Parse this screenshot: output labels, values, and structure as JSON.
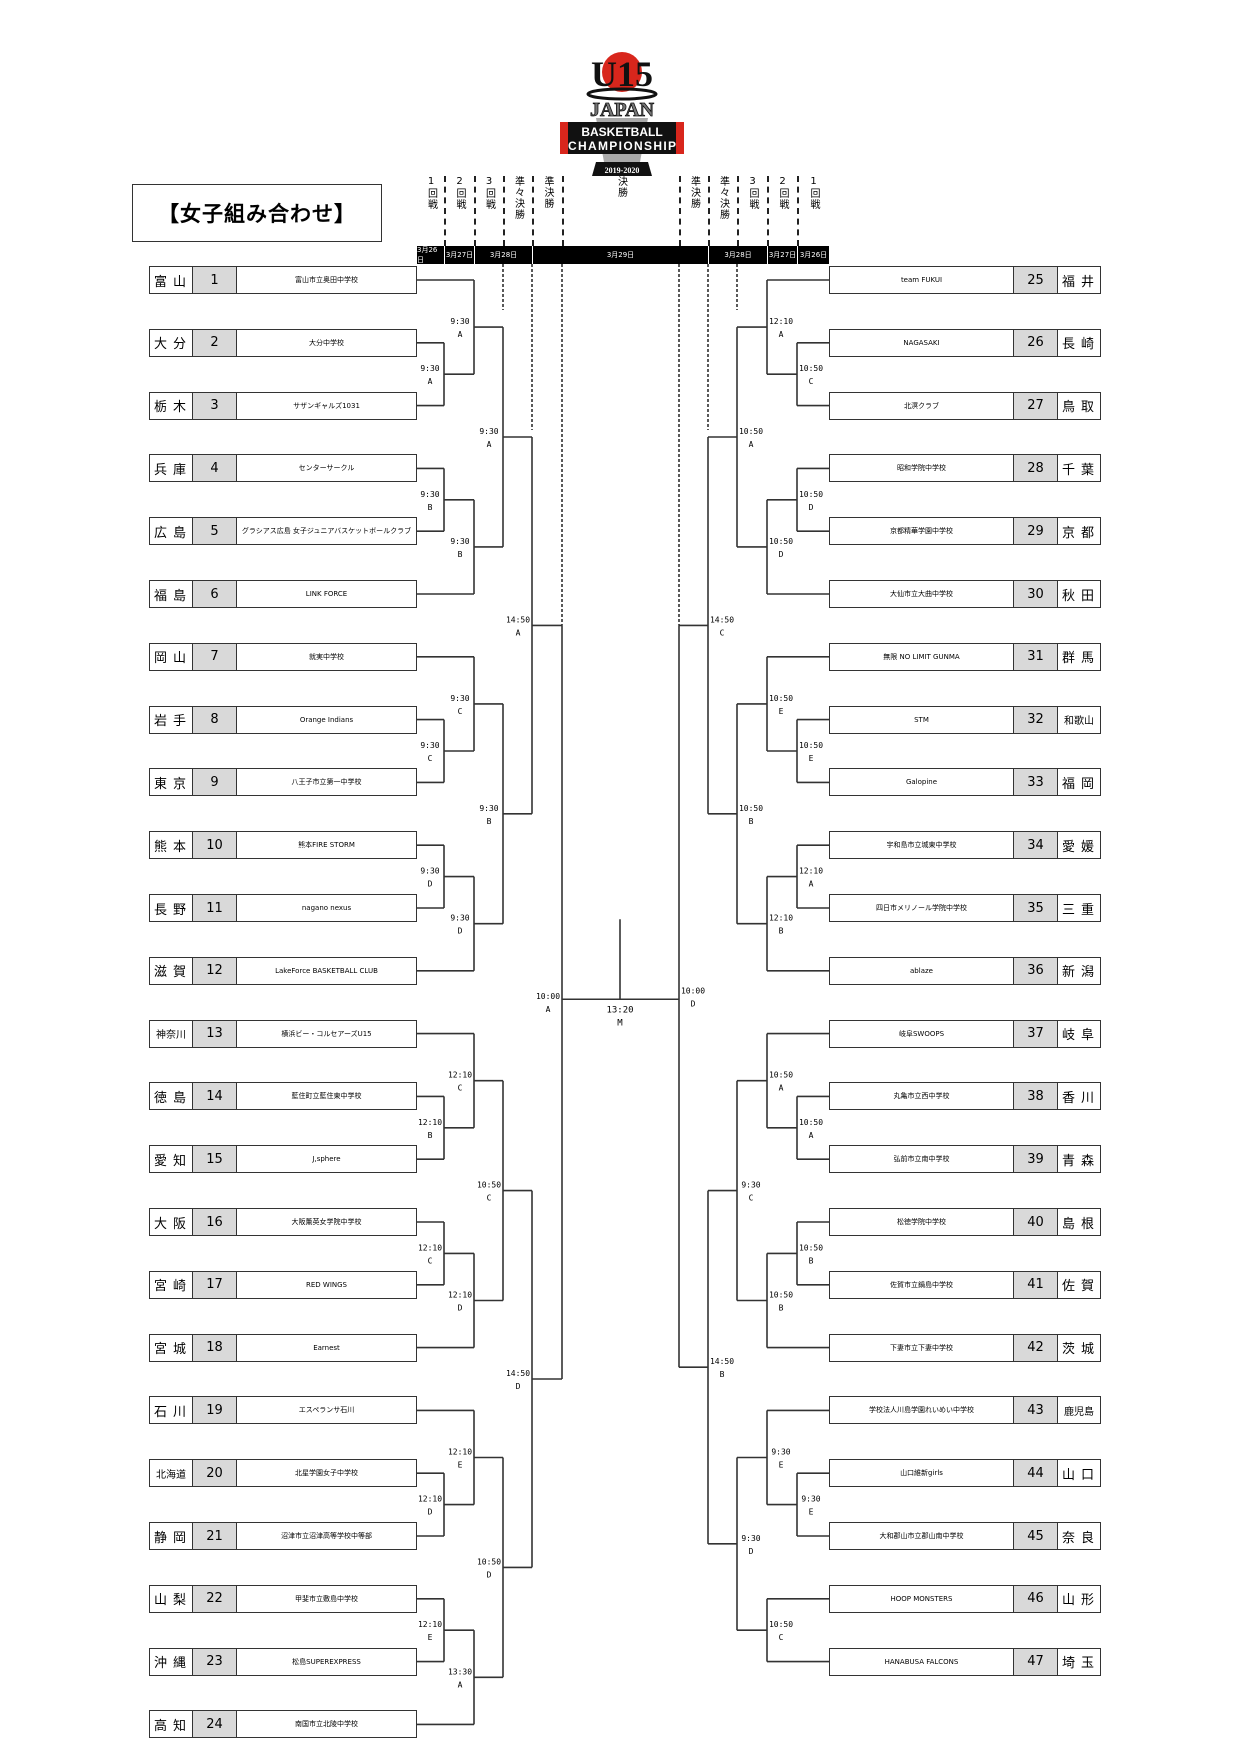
{
  "logo": {
    "line1": "U15",
    "line2": "JAPAN",
    "line3": "BASKETBALL",
    "line4": "CHAMPIONSHIP",
    "years": "2019-2020"
  },
  "title": "【女子組み合わせ】",
  "header": {
    "rounds": [
      "1回戦",
      "2回戦",
      "3回戦",
      "準々決勝",
      "準決勝",
      "決勝",
      "準決勝",
      "準々決勝",
      "3回戦",
      "2回戦",
      "1回戦"
    ],
    "dates": [
      "3月26日",
      "3月27日",
      "3月28日",
      "3月29日",
      "3月28日",
      "3月27日",
      "3月26日"
    ]
  },
  "left": {
    "teams": [
      {
        "pref": "富山",
        "no": "1",
        "name": "富山市立奥田中学校"
      },
      {
        "pref": "大分",
        "no": "2",
        "name": "大分中学校"
      },
      {
        "pref": "栃木",
        "no": "3",
        "name": "サザンギャルズ1031"
      },
      {
        "pref": "兵庫",
        "no": "4",
        "name": "センターサークル"
      },
      {
        "pref": "広島",
        "no": "5",
        "name": "グラシアス広島 女子ジュニアバスケットボールクラブ"
      },
      {
        "pref": "福島",
        "no": "6",
        "name": "LINK FORCE"
      },
      {
        "pref": "岡山",
        "no": "7",
        "name": "就実中学校"
      },
      {
        "pref": "岩手",
        "no": "8",
        "name": "Orange Indians"
      },
      {
        "pref": "東京",
        "no": "9",
        "name": "八王子市立第一中学校"
      },
      {
        "pref": "熊本",
        "no": "10",
        "name": "熊本FIRE STORM"
      },
      {
        "pref": "長野",
        "no": "11",
        "name": "nagano nexus"
      },
      {
        "pref": "滋賀",
        "no": "12",
        "name": "LakeForce BASKETBALL CLUB"
      },
      {
        "pref": "神奈川",
        "no": "13",
        "name": "横浜ビー・コルセアーズU15"
      },
      {
        "pref": "徳島",
        "no": "14",
        "name": "藍住町立藍住東中学校"
      },
      {
        "pref": "愛知",
        "no": "15",
        "name": "J,sphere"
      },
      {
        "pref": "大阪",
        "no": "16",
        "name": "大阪薫英女学院中学校"
      },
      {
        "pref": "宮崎",
        "no": "17",
        "name": "RED WINGS"
      },
      {
        "pref": "宮城",
        "no": "18",
        "name": "Earnest"
      },
      {
        "pref": "石川",
        "no": "19",
        "name": "エスペランサ石川"
      },
      {
        "pref": "北海道",
        "no": "20",
        "name": "北星学園女子中学校"
      },
      {
        "pref": "静岡",
        "no": "21",
        "name": "沼津市立沼津高等学校中等部"
      },
      {
        "pref": "山梨",
        "no": "22",
        "name": "甲斐市立敷島中学校"
      },
      {
        "pref": "沖縄",
        "no": "23",
        "name": "松島SUPEREXPRESS"
      },
      {
        "pref": "高知",
        "no": "24",
        "name": "南国市立北陵中学校"
      }
    ],
    "group_matches": [
      {
        "first": {
          "time": "9:30",
          "court": "A"
        },
        "second": {
          "time": "9:30",
          "court": "A"
        }
      },
      {
        "first": {
          "time": "9:30",
          "court": "B"
        },
        "second": {
          "time": "9:30",
          "court": "B"
        }
      },
      {
        "first": {
          "time": "9:30",
          "court": "C"
        },
        "second": {
          "time": "9:30",
          "court": "C"
        }
      },
      {
        "first": {
          "time": "9:30",
          "court": "D"
        },
        "second": {
          "time": "9:30",
          "court": "D"
        }
      },
      {
        "first": {
          "time": "12:10",
          "court": "B"
        },
        "second": {
          "time": "12:10",
          "court": "C"
        }
      },
      {
        "first": {
          "time": "12:10",
          "court": "C"
        },
        "second": {
          "time": "12:10",
          "court": "D"
        }
      },
      {
        "first": {
          "time": "12:10",
          "court": "D"
        },
        "second": {
          "time": "12:10",
          "court": "E"
        }
      },
      {
        "first": {
          "time": "12:10",
          "court": "E"
        },
        "second": {
          "time": "13:30",
          "court": "A"
        }
      }
    ],
    "round3": [
      {
        "time": "9:30",
        "court": "A"
      },
      {
        "time": "9:30",
        "court": "B"
      },
      {
        "time": "10:50",
        "court": "C"
      },
      {
        "time": "10:50",
        "court": "D"
      }
    ],
    "quarterfinals": [
      {
        "time": "14:50",
        "court": "A"
      },
      {
        "time": "14:50",
        "court": "D"
      }
    ],
    "semifinal": {
      "time": "10:00",
      "court": "A"
    }
  },
  "right": {
    "teams": [
      {
        "pref": "福井",
        "no": "25",
        "name": "team FUKUI"
      },
      {
        "pref": "長崎",
        "no": "26",
        "name": "NAGASAKI"
      },
      {
        "pref": "鳥取",
        "no": "27",
        "name": "北溟クラブ"
      },
      {
        "pref": "千葉",
        "no": "28",
        "name": "昭和学院中学校"
      },
      {
        "pref": "京都",
        "no": "29",
        "name": "京都精華学園中学校"
      },
      {
        "pref": "秋田",
        "no": "30",
        "name": "大仙市立大曲中学校"
      },
      {
        "pref": "群馬",
        "no": "31",
        "name": "無限 NO LIMIT GUNMA"
      },
      {
        "pref": "和歌山",
        "no": "32",
        "name": "STM"
      },
      {
        "pref": "福岡",
        "no": "33",
        "name": "Galopine"
      },
      {
        "pref": "愛媛",
        "no": "34",
        "name": "宇和島市立城東中学校"
      },
      {
        "pref": "三重",
        "no": "35",
        "name": "四日市メリノール学院中学校"
      },
      {
        "pref": "新潟",
        "no": "36",
        "name": "ablaze"
      },
      {
        "pref": "岐阜",
        "no": "37",
        "name": "岐阜SWOOPS"
      },
      {
        "pref": "香川",
        "no": "38",
        "name": "丸亀市立西中学校"
      },
      {
        "pref": "青森",
        "no": "39",
        "name": "弘前市立南中学校"
      },
      {
        "pref": "島根",
        "no": "40",
        "name": "松徳学院中学校"
      },
      {
        "pref": "佐賀",
        "no": "41",
        "name": "佐賀市立鍋島中学校"
      },
      {
        "pref": "茨城",
        "no": "42",
        "name": "下妻市立下妻中学校"
      },
      {
        "pref": "鹿児島",
        "no": "43",
        "name": "学校法人川島学園れいめい中学校"
      },
      {
        "pref": "山口",
        "no": "44",
        "name": "山口維新girls"
      },
      {
        "pref": "奈良",
        "no": "45",
        "name": "大和郡山市立郡山南中学校"
      },
      {
        "pref": "山形",
        "no": "46",
        "name": "HOOP MONSTERS"
      },
      {
        "pref": "埼玉",
        "no": "47",
        "name": "HANABUSA FALCONS"
      }
    ],
    "group_matches": [
      {
        "first": {
          "time": "10:50",
          "court": "C"
        },
        "second": {
          "time": "12:10",
          "court": "A"
        }
      },
      {
        "first": {
          "time": "10:50",
          "court": "D"
        },
        "second": {
          "time": "10:50",
          "court": "D"
        }
      },
      {
        "first": {
          "time": "10:50",
          "court": "E"
        },
        "second": {
          "time": "10:50",
          "court": "E"
        }
      },
      {
        "first": {
          "time": "12:10",
          "court": "A"
        },
        "second": {
          "time": "12:10",
          "court": "B"
        }
      },
      {
        "first": {
          "time": "10:50",
          "court": "A"
        },
        "second": {
          "time": "10:50",
          "court": "A"
        }
      },
      {
        "first": {
          "time": "10:50",
          "court": "B"
        },
        "second": {
          "time": "10:50",
          "court": "B"
        }
      },
      {
        "first": {
          "time": "9:30",
          "court": "E"
        },
        "second": {
          "time": "9:30",
          "court": "E"
        }
      },
      {
        "first": null,
        "second": {
          "time": "10:50",
          "court": "C"
        }
      }
    ],
    "round3": [
      {
        "time": "10:50",
        "court": "A"
      },
      {
        "time": "10:50",
        "court": "B"
      },
      {
        "time": "9:30",
        "court": "C"
      },
      {
        "time": "9:30",
        "court": "D"
      }
    ],
    "quarterfinals": [
      {
        "time": "14:50",
        "court": "C"
      },
      {
        "time": "14:50",
        "court": "B"
      }
    ],
    "semifinal": {
      "time": "10:00",
      "court": "D"
    }
  },
  "final": {
    "time": "13:20",
    "court": "M"
  }
}
